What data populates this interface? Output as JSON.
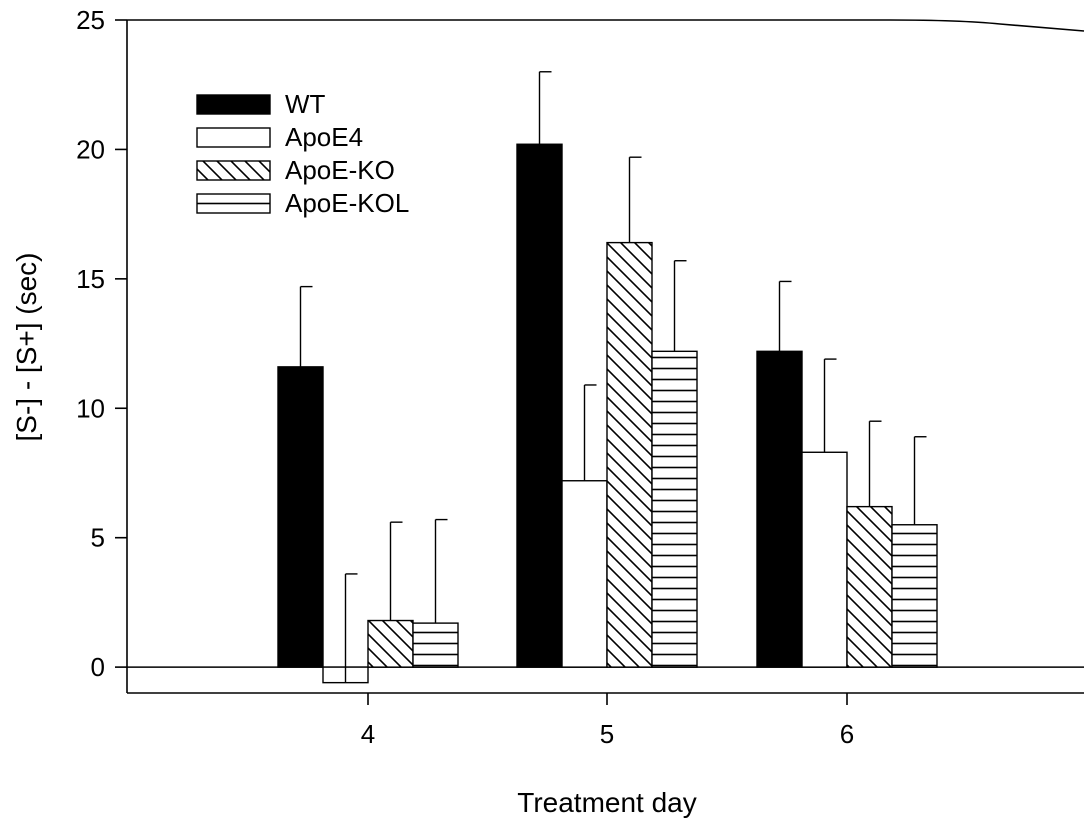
{
  "chart_data": {
    "type": "bar",
    "title": "",
    "xlabel": "Treatment day",
    "ylabel": "[S-] - [S+] (sec)",
    "categories": [
      "4",
      "5",
      "6"
    ],
    "ylim": [
      -1,
      25
    ],
    "yticks": [
      0,
      5,
      10,
      15,
      20,
      25
    ],
    "grid": false,
    "legend_position": "top-left",
    "series": [
      {
        "name": "WT",
        "fill": "solid-black",
        "values": [
          11.6,
          20.2,
          12.2
        ],
        "errors": [
          3.1,
          2.8,
          2.7
        ]
      },
      {
        "name": "ApoE4",
        "fill": "white",
        "values": [
          -0.6,
          7.2,
          8.3
        ],
        "errors": [
          4.2,
          3.7,
          3.6
        ]
      },
      {
        "name": "ApoE-KO",
        "fill": "diagonal-hatch",
        "values": [
          1.8,
          16.4,
          6.2
        ],
        "errors": [
          3.8,
          3.3,
          3.3
        ]
      },
      {
        "name": "ApoE-KOL",
        "fill": "horizontal-hatch",
        "values": [
          1.7,
          12.2,
          5.5
        ],
        "errors": [
          4.0,
          3.5,
          3.4
        ]
      }
    ]
  }
}
